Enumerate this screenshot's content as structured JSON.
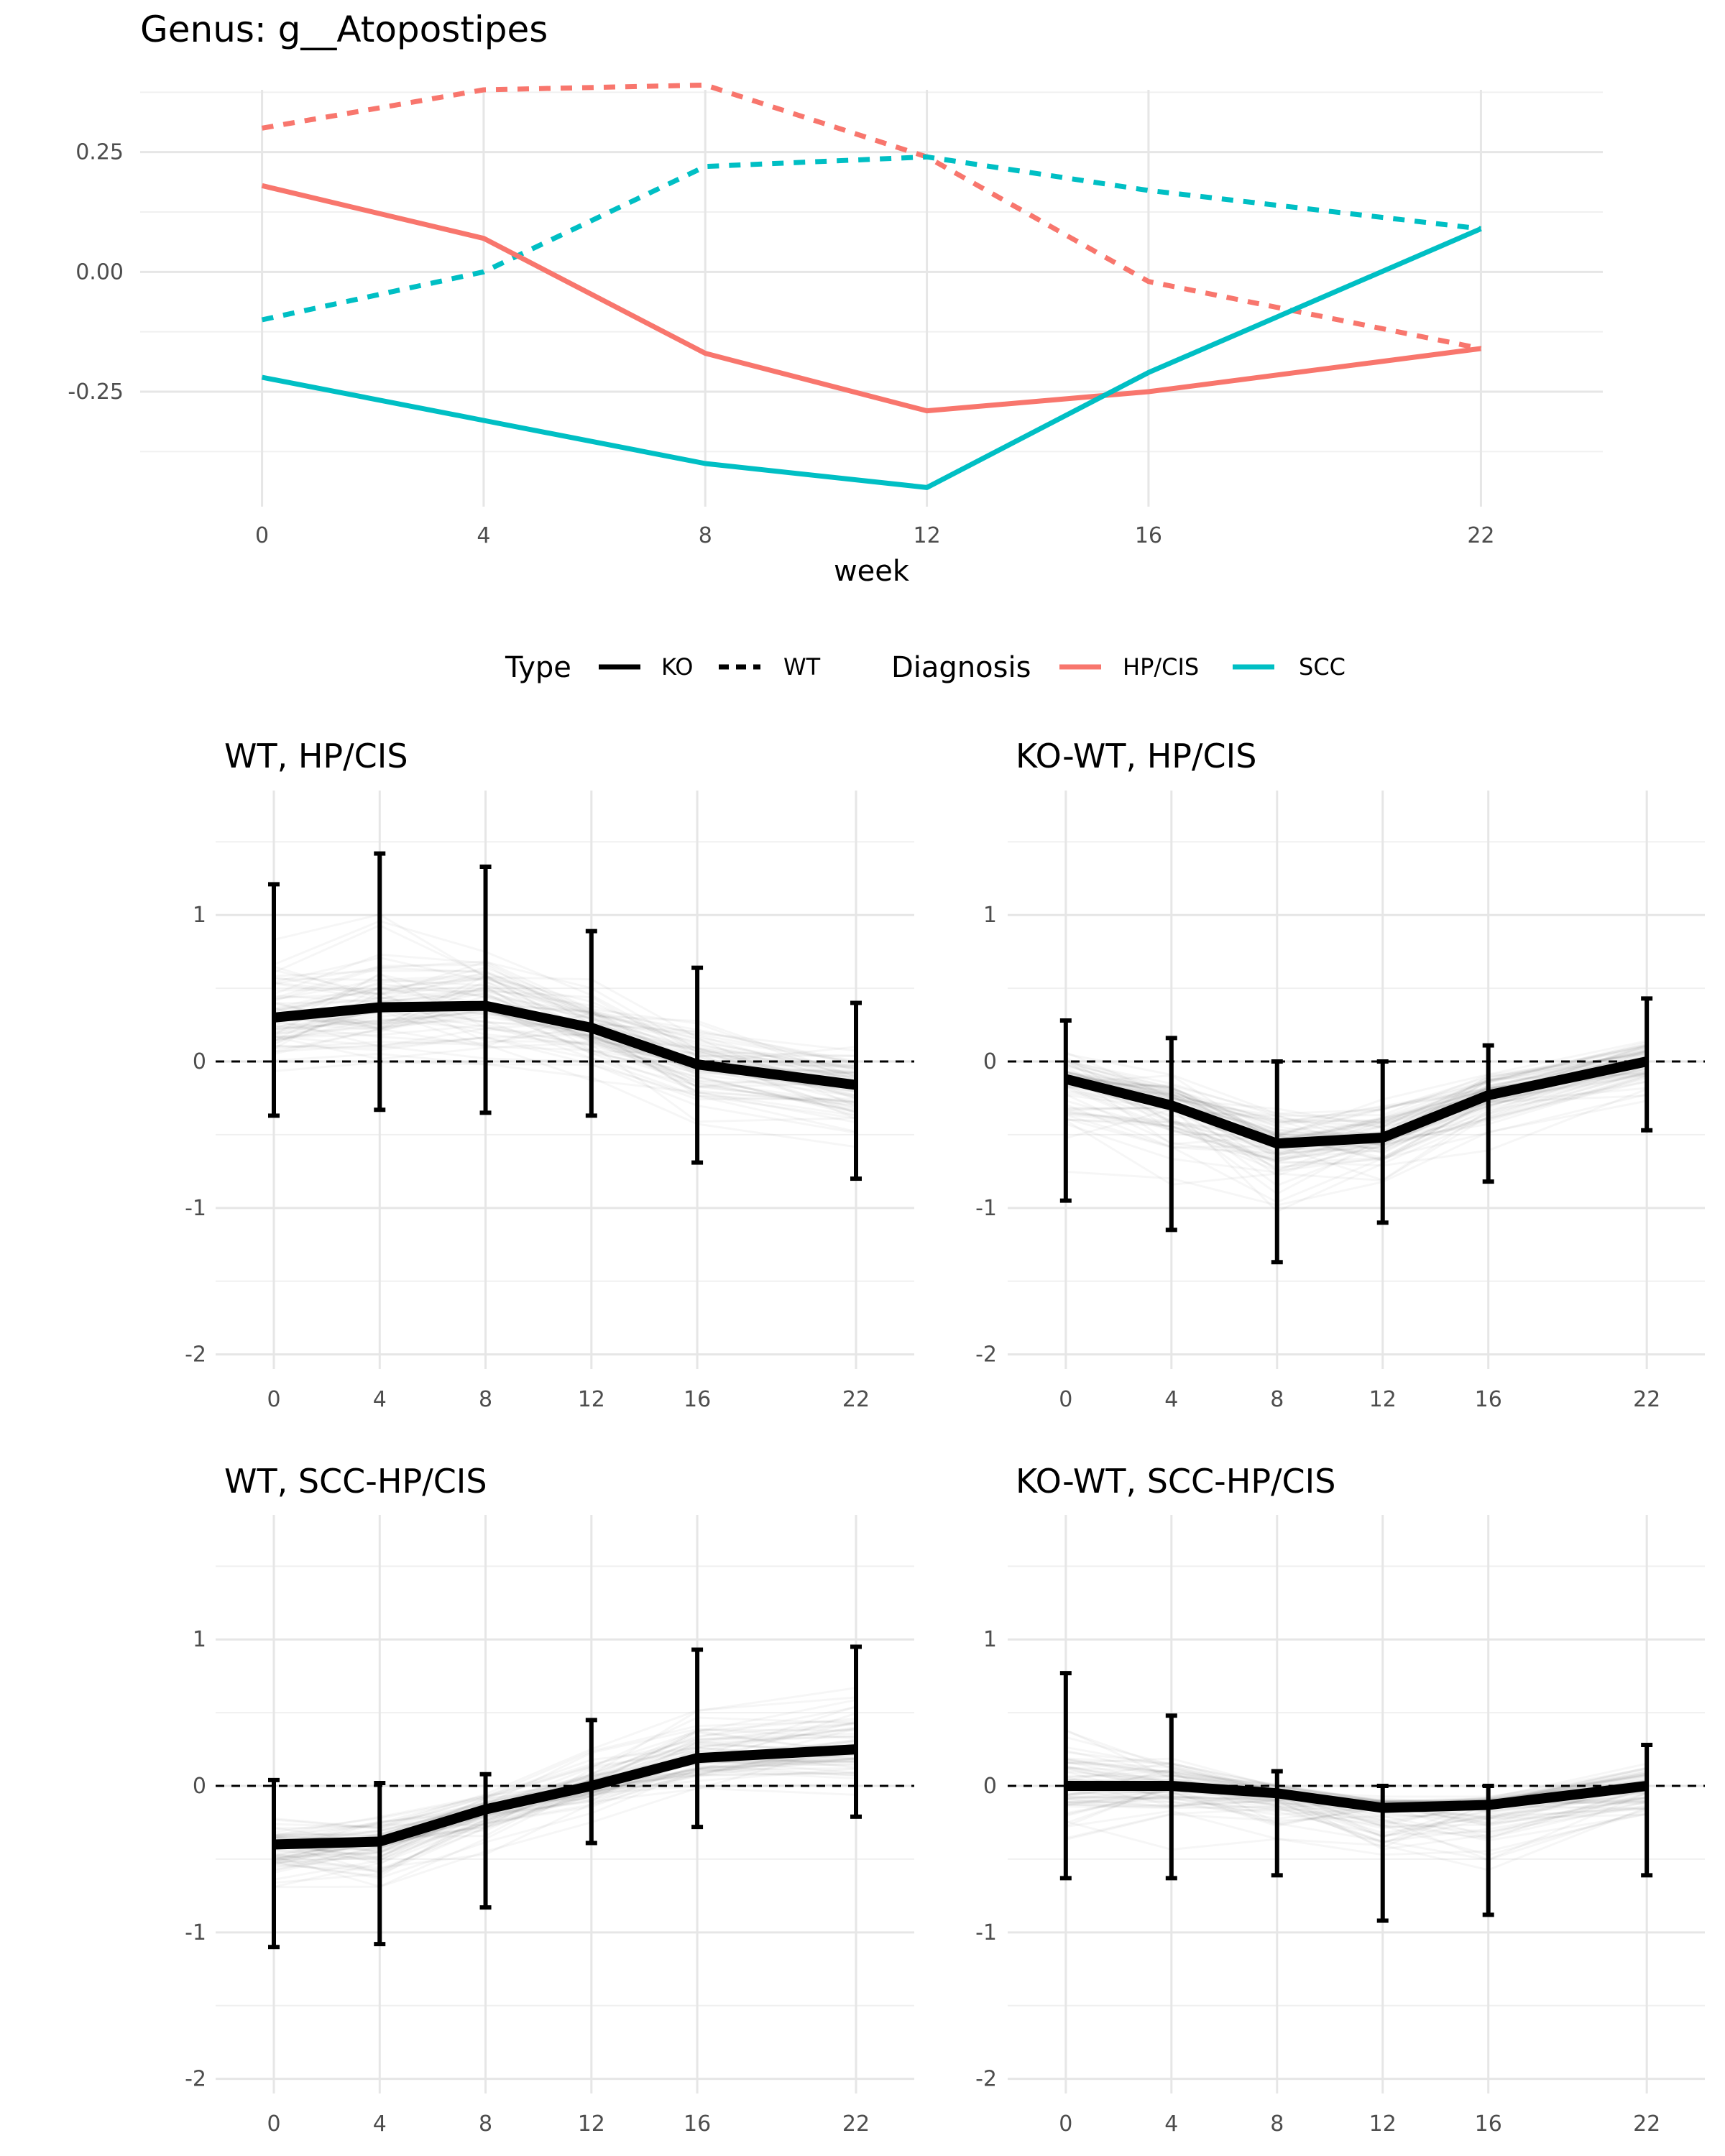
{
  "chart_data": [
    {
      "type": "line",
      "title": "Genus: g__Atopostipes",
      "xlabel": "week",
      "ylabel": "",
      "x": [
        0,
        4,
        8,
        12,
        16,
        22
      ],
      "xticks": [
        "0",
        "4",
        "8",
        "12",
        "16",
        "22"
      ],
      "xlim": [
        -2.2,
        24.2
      ],
      "yticks": [
        -0.25,
        0.0,
        0.25
      ],
      "ytick_labels": [
        "-0.25",
        "0.00",
        "0.25"
      ],
      "ylim": [
        -0.49,
        0.38
      ],
      "grid": true,
      "series": [
        {
          "type": "WT",
          "diagnosis": "HP/CIS",
          "color": "#F8766D",
          "dash": true,
          "values": [
            0.3,
            0.38,
            0.39,
            0.24,
            -0.02,
            -0.16
          ]
        },
        {
          "type": "WT",
          "diagnosis": "SCC",
          "color": "#00BFC4",
          "dash": true,
          "values": [
            -0.1,
            0.0,
            0.22,
            0.24,
            0.17,
            0.09
          ]
        },
        {
          "type": "KO",
          "diagnosis": "HP/CIS",
          "color": "#F8766D",
          "dash": false,
          "values": [
            0.18,
            0.07,
            -0.17,
            -0.29,
            -0.25,
            -0.16
          ]
        },
        {
          "type": "KO",
          "diagnosis": "SCC",
          "color": "#00BFC4",
          "dash": false,
          "values": [
            -0.22,
            -0.31,
            -0.4,
            -0.45,
            -0.21,
            0.09
          ]
        }
      ]
    },
    {
      "type": "line",
      "title": "WT, HP/CIS",
      "x": [
        0,
        4,
        8,
        12,
        16,
        22
      ],
      "xticks": [
        "0",
        "4",
        "8",
        "12",
        "16",
        "22"
      ],
      "yticks": [
        -2,
        -1,
        0,
        1
      ],
      "ytick_labels": [
        "-2",
        "-1",
        "0",
        "1"
      ],
      "ylim": [
        -2.1,
        1.85
      ],
      "mean": [
        0.3,
        0.37,
        0.38,
        0.23,
        -0.02,
        -0.16
      ],
      "lower": [
        -0.37,
        -0.33,
        -0.35,
        -0.37,
        -0.69,
        -0.8
      ],
      "upper": [
        1.21,
        1.42,
        1.33,
        0.89,
        0.64,
        0.4
      ],
      "reference_line": 0
    },
    {
      "type": "line",
      "title": "KO-WT, HP/CIS",
      "x": [
        0,
        4,
        8,
        12,
        16,
        22
      ],
      "xticks": [
        "0",
        "4",
        "8",
        "12",
        "16",
        "22"
      ],
      "yticks": [
        -2,
        -1,
        0,
        1
      ],
      "ytick_labels": [
        "-2",
        "-1",
        "0",
        "1"
      ],
      "ylim": [
        -2.1,
        1.85
      ],
      "mean": [
        -0.12,
        -0.3,
        -0.56,
        -0.52,
        -0.23,
        0.0
      ],
      "lower": [
        -0.95,
        -1.15,
        -1.37,
        -1.1,
        -0.82,
        -0.47
      ],
      "upper": [
        0.28,
        0.16,
        0.0,
        0.0,
        0.11,
        0.43
      ],
      "reference_line": 0
    },
    {
      "type": "line",
      "title": "WT, SCC-HP/CIS",
      "x": [
        0,
        4,
        8,
        12,
        16,
        22
      ],
      "xticks": [
        "0",
        "4",
        "8",
        "12",
        "16",
        "22"
      ],
      "yticks": [
        -2,
        -1,
        0,
        1
      ],
      "ytick_labels": [
        "-2",
        "-1",
        "0",
        "1"
      ],
      "ylim": [
        -2.1,
        1.85
      ],
      "mean": [
        -0.4,
        -0.38,
        -0.16,
        0.0,
        0.19,
        0.25
      ],
      "lower": [
        -1.1,
        -1.08,
        -0.83,
        -0.39,
        -0.28,
        -0.21
      ],
      "upper": [
        0.04,
        0.02,
        0.08,
        0.45,
        0.93,
        0.95
      ],
      "reference_line": 0
    },
    {
      "type": "line",
      "title": "KO-WT, SCC-HP/CIS",
      "x": [
        0,
        4,
        8,
        12,
        16,
        22
      ],
      "xticks": [
        "0",
        "4",
        "8",
        "12",
        "16",
        "22"
      ],
      "yticks": [
        -2,
        -1,
        0,
        1
      ],
      "ytick_labels": [
        "-2",
        "-1",
        "0",
        "1"
      ],
      "ylim": [
        -2.1,
        1.85
      ],
      "mean": [
        0.0,
        0.0,
        -0.05,
        -0.15,
        -0.13,
        0.0
      ],
      "lower": [
        -0.63,
        -0.63,
        -0.61,
        -0.92,
        -0.88,
        -0.61
      ],
      "upper": [
        0.77,
        0.48,
        0.1,
        0.0,
        0.0,
        0.28
      ],
      "reference_line": 0
    }
  ],
  "legend": {
    "type_title": "Type",
    "type_items": [
      {
        "label": "KO",
        "dash": false
      },
      {
        "label": "WT",
        "dash": true
      }
    ],
    "diagnosis_title": "Diagnosis",
    "diagnosis_items": [
      {
        "label": "HP/CIS",
        "color": "#F8766D"
      },
      {
        "label": "SCC",
        "color": "#00BFC4"
      }
    ]
  }
}
